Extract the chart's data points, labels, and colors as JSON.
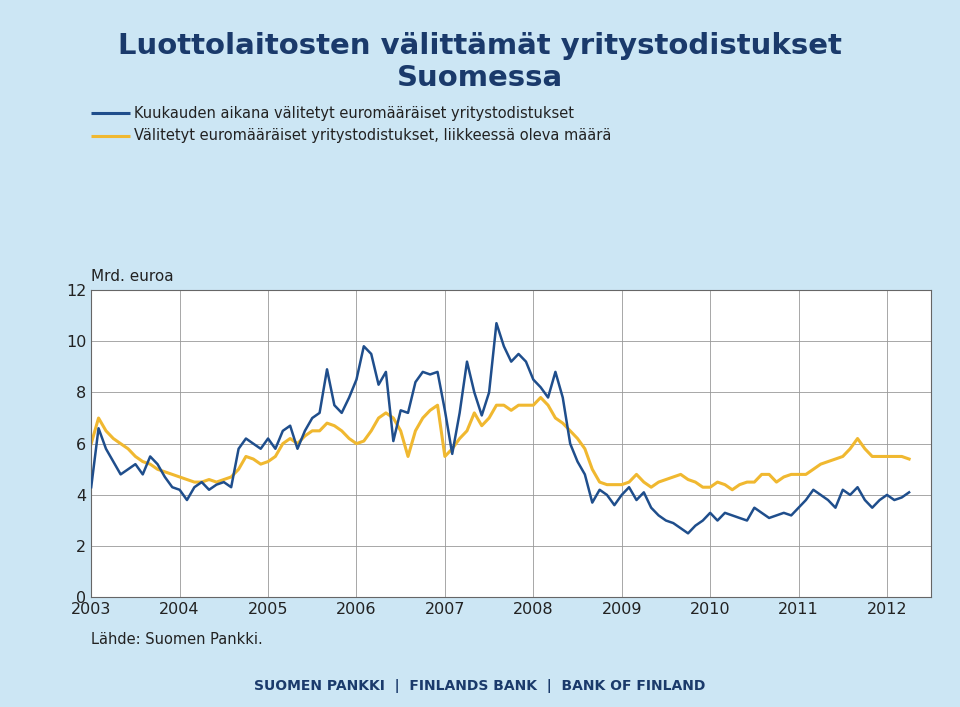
{
  "title_line1": "Luottolaitosten välittämät yritystodistukset",
  "title_line2": "Suomessa",
  "title_color": "#1a3a6b",
  "title_fontsize": 22,
  "legend1": "Kuukauden aikana välitetyt euromääräiset yritystodistukset",
  "legend2": "Välitetyt euromääräiset yritystodistukset, liikkeessä oleva määrä",
  "ylabel": "Mrd. euroa",
  "source": "Lähde: Suomen Pankki.",
  "footer": "SUOMEN PANKKI  |  FINLANDS BANK  |  BANK OF FINLAND",
  "background_color": "#cce6f4",
  "plot_background": "#ffffff",
  "line1_color": "#1f4e8c",
  "line2_color": "#f0b830",
  "ylim": [
    0,
    12
  ],
  "yticks": [
    0,
    2,
    4,
    6,
    8,
    10,
    12
  ],
  "xticks": [
    2003,
    2004,
    2005,
    2006,
    2007,
    2008,
    2009,
    2010,
    2011,
    2012
  ],
  "blue_series": {
    "x": [
      2003.0,
      2003.083,
      2003.167,
      2003.25,
      2003.333,
      2003.417,
      2003.5,
      2003.583,
      2003.667,
      2003.75,
      2003.833,
      2003.917,
      2004.0,
      2004.083,
      2004.167,
      2004.25,
      2004.333,
      2004.417,
      2004.5,
      2004.583,
      2004.667,
      2004.75,
      2004.833,
      2004.917,
      2005.0,
      2005.083,
      2005.167,
      2005.25,
      2005.333,
      2005.417,
      2005.5,
      2005.583,
      2005.667,
      2005.75,
      2005.833,
      2005.917,
      2006.0,
      2006.083,
      2006.167,
      2006.25,
      2006.333,
      2006.417,
      2006.5,
      2006.583,
      2006.667,
      2006.75,
      2006.833,
      2006.917,
      2007.0,
      2007.083,
      2007.167,
      2007.25,
      2007.333,
      2007.417,
      2007.5,
      2007.583,
      2007.667,
      2007.75,
      2007.833,
      2007.917,
      2008.0,
      2008.083,
      2008.167,
      2008.25,
      2008.333,
      2008.417,
      2008.5,
      2008.583,
      2008.667,
      2008.75,
      2008.833,
      2008.917,
      2009.0,
      2009.083,
      2009.167,
      2009.25,
      2009.333,
      2009.417,
      2009.5,
      2009.583,
      2009.667,
      2009.75,
      2009.833,
      2009.917,
      2010.0,
      2010.083,
      2010.167,
      2010.25,
      2010.333,
      2010.417,
      2010.5,
      2010.583,
      2010.667,
      2010.75,
      2010.833,
      2010.917,
      2011.0,
      2011.083,
      2011.167,
      2011.25,
      2011.333,
      2011.417,
      2011.5,
      2011.583,
      2011.667,
      2011.75,
      2011.833,
      2011.917,
      2012.0,
      2012.083,
      2012.167,
      2012.25
    ],
    "y": [
      4.3,
      6.6,
      5.8,
      5.3,
      4.8,
      5.0,
      5.2,
      4.8,
      5.5,
      5.2,
      4.7,
      4.3,
      4.2,
      3.8,
      4.3,
      4.5,
      4.2,
      4.4,
      4.5,
      4.3,
      5.8,
      6.2,
      6.0,
      5.8,
      6.2,
      5.8,
      6.5,
      6.7,
      5.8,
      6.5,
      7.0,
      7.2,
      8.9,
      7.5,
      7.2,
      7.8,
      8.5,
      9.8,
      9.5,
      8.3,
      8.8,
      6.1,
      7.3,
      7.2,
      8.4,
      8.8,
      8.7,
      8.8,
      7.3,
      5.6,
      7.2,
      9.2,
      8.0,
      7.1,
      8.0,
      10.7,
      9.8,
      9.2,
      9.5,
      9.2,
      8.5,
      8.2,
      7.8,
      8.8,
      7.8,
      6.0,
      5.3,
      4.8,
      3.7,
      4.2,
      4.0,
      3.6,
      4.0,
      4.3,
      3.8,
      4.1,
      3.5,
      3.2,
      3.0,
      2.9,
      2.7,
      2.5,
      2.8,
      3.0,
      3.3,
      3.0,
      3.3,
      3.2,
      3.1,
      3.0,
      3.5,
      3.3,
      3.1,
      3.2,
      3.3,
      3.2,
      3.5,
      3.8,
      4.2,
      4.0,
      3.8,
      3.5,
      4.2,
      4.0,
      4.3,
      3.8,
      3.5,
      3.8,
      4.0,
      3.8,
      3.9,
      4.1
    ]
  },
  "yellow_series": {
    "x": [
      2003.0,
      2003.083,
      2003.167,
      2003.25,
      2003.333,
      2003.417,
      2003.5,
      2003.583,
      2003.667,
      2003.75,
      2003.833,
      2003.917,
      2004.0,
      2004.083,
      2004.167,
      2004.25,
      2004.333,
      2004.417,
      2004.5,
      2004.583,
      2004.667,
      2004.75,
      2004.833,
      2004.917,
      2005.0,
      2005.083,
      2005.167,
      2005.25,
      2005.333,
      2005.417,
      2005.5,
      2005.583,
      2005.667,
      2005.75,
      2005.833,
      2005.917,
      2006.0,
      2006.083,
      2006.167,
      2006.25,
      2006.333,
      2006.417,
      2006.5,
      2006.583,
      2006.667,
      2006.75,
      2006.833,
      2006.917,
      2007.0,
      2007.083,
      2007.167,
      2007.25,
      2007.333,
      2007.417,
      2007.5,
      2007.583,
      2007.667,
      2007.75,
      2007.833,
      2007.917,
      2008.0,
      2008.083,
      2008.167,
      2008.25,
      2008.333,
      2008.417,
      2008.5,
      2008.583,
      2008.667,
      2008.75,
      2008.833,
      2008.917,
      2009.0,
      2009.083,
      2009.167,
      2009.25,
      2009.333,
      2009.417,
      2009.5,
      2009.583,
      2009.667,
      2009.75,
      2009.833,
      2009.917,
      2010.0,
      2010.083,
      2010.167,
      2010.25,
      2010.333,
      2010.417,
      2010.5,
      2010.583,
      2010.667,
      2010.75,
      2010.833,
      2010.917,
      2011.0,
      2011.083,
      2011.167,
      2011.25,
      2011.333,
      2011.417,
      2011.5,
      2011.583,
      2011.667,
      2011.75,
      2011.833,
      2011.917,
      2012.0,
      2012.083,
      2012.167,
      2012.25
    ],
    "y": [
      6.0,
      7.0,
      6.5,
      6.2,
      6.0,
      5.8,
      5.5,
      5.3,
      5.2,
      5.0,
      4.9,
      4.8,
      4.7,
      4.6,
      4.5,
      4.5,
      4.6,
      4.5,
      4.6,
      4.7,
      5.0,
      5.5,
      5.4,
      5.2,
      5.3,
      5.5,
      6.0,
      6.2,
      6.0,
      6.3,
      6.5,
      6.5,
      6.8,
      6.7,
      6.5,
      6.2,
      6.0,
      6.1,
      6.5,
      7.0,
      7.2,
      7.0,
      6.5,
      5.5,
      6.5,
      7.0,
      7.3,
      7.5,
      5.5,
      5.8,
      6.2,
      6.5,
      7.2,
      6.7,
      7.0,
      7.5,
      7.5,
      7.3,
      7.5,
      7.5,
      7.5,
      7.8,
      7.5,
      7.0,
      6.8,
      6.5,
      6.2,
      5.8,
      5.0,
      4.5,
      4.4,
      4.4,
      4.4,
      4.5,
      4.8,
      4.5,
      4.3,
      4.5,
      4.6,
      4.7,
      4.8,
      4.6,
      4.5,
      4.3,
      4.3,
      4.5,
      4.4,
      4.2,
      4.4,
      4.5,
      4.5,
      4.8,
      4.8,
      4.5,
      4.7,
      4.8,
      4.8,
      4.8,
      5.0,
      5.2,
      5.3,
      5.4,
      5.5,
      5.8,
      6.2,
      5.8,
      5.5,
      5.5,
      5.5,
      5.5,
      5.5,
      5.4
    ]
  }
}
